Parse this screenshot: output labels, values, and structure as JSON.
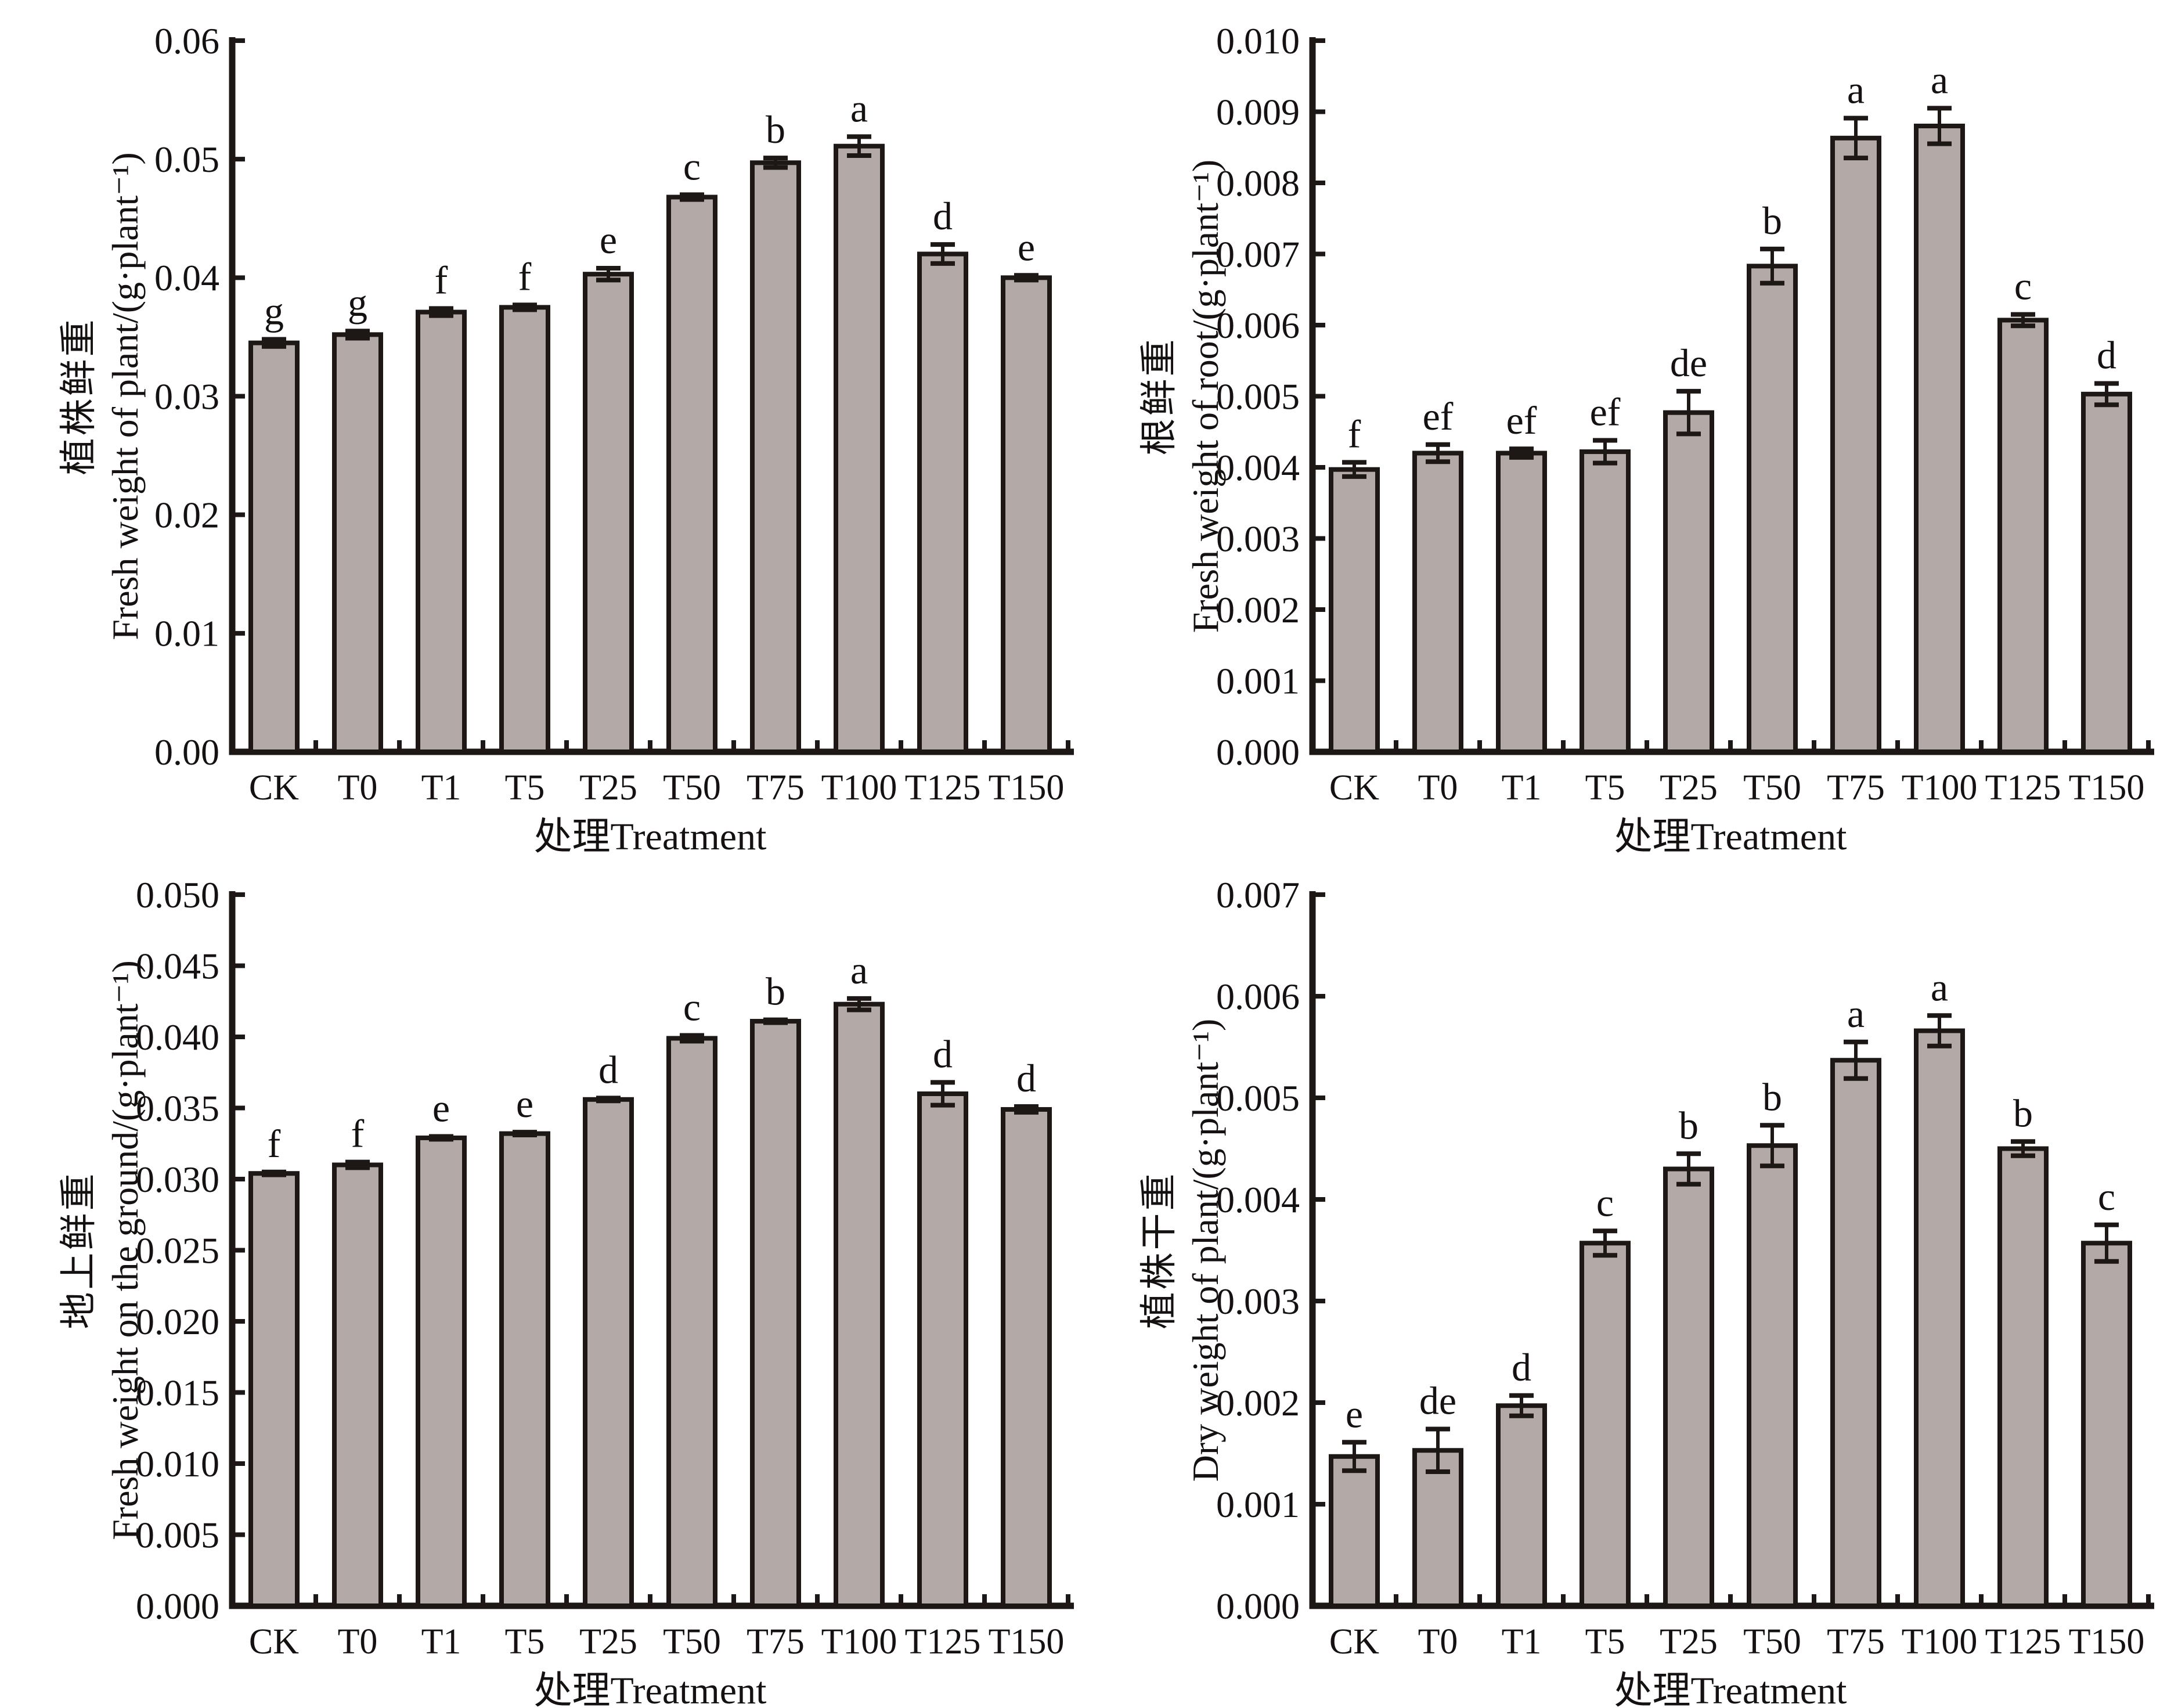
{
  "figure": {
    "description": "Four-panel bar chart figure of plant biomass under treatments",
    "x_axis_label": "处理Treatment",
    "treatments": [
      "CK",
      "T0",
      "T1",
      "T5",
      "T25",
      "T50",
      "T75",
      "T100",
      "T125",
      "T150"
    ]
  },
  "colors": {
    "background": "#ffffff",
    "bar_fill": "#b3a9a6",
    "bar_stroke": "#1d1815",
    "axis": "#1d1815",
    "error_bar": "#1d1815",
    "text": "#151110"
  },
  "chart_data": [
    {
      "type": "bar",
      "panel": "top-left",
      "title": "",
      "ylabel_zh": "植株鲜重",
      "ylabel_en": "Fresh weight of plant/(g·plant⁻¹)",
      "xlabel": "处理Treatment",
      "categories": [
        "CK",
        "T0",
        "T1",
        "T5",
        "T25",
        "T50",
        "T75",
        "T100",
        "T125",
        "T150"
      ],
      "values": [
        0.0345,
        0.0352,
        0.0371,
        0.0375,
        0.0403,
        0.0468,
        0.0497,
        0.0511,
        0.042,
        0.04
      ],
      "errors": [
        0.0003,
        0.0003,
        0.0003,
        0.0002,
        0.0005,
        0.0002,
        0.0004,
        0.0008,
        0.0008,
        0.0002
      ],
      "sig_letters": [
        "g",
        "g",
        "f",
        "f",
        "e",
        "c",
        "b",
        "a",
        "d",
        "e"
      ],
      "ylim": [
        0,
        0.06
      ],
      "ytick_step": 0.01,
      "ytick_decimals": 2,
      "grid": false,
      "legend": null
    },
    {
      "type": "bar",
      "panel": "top-right",
      "title": "",
      "ylabel_zh": "根鲜重",
      "ylabel_en": "Fresh weight of root/(g·plant⁻¹)",
      "xlabel": "处理Treatment",
      "categories": [
        "CK",
        "T0",
        "T1",
        "T5",
        "T25",
        "T50",
        "T75",
        "T100",
        "T125",
        "T150"
      ],
      "values": [
        0.00397,
        0.0042,
        0.0042,
        0.00422,
        0.00477,
        0.00683,
        0.00863,
        0.0088,
        0.00607,
        0.00503
      ],
      "errors": [
        0.0001,
        0.00012,
        6e-05,
        0.00016,
        0.0003,
        0.00024,
        0.00028,
        0.00025,
        8e-05,
        0.00015
      ],
      "sig_letters": [
        "f",
        "ef",
        "ef",
        "ef",
        "de",
        "b",
        "a",
        "a",
        "c",
        "d"
      ],
      "ylim": [
        0,
        0.01
      ],
      "ytick_step": 0.001,
      "ytick_decimals": 3,
      "grid": false,
      "legend": null
    },
    {
      "type": "bar",
      "panel": "bottom-left",
      "title": "",
      "ylabel_zh": "地上鲜重",
      "ylabel_en": "Fresh weight on the ground/(g·plant⁻¹)",
      "xlabel": "处理Treatment",
      "categories": [
        "CK",
        "T0",
        "T1",
        "T5",
        "T25",
        "T50",
        "T75",
        "T100",
        "T125",
        "T150"
      ],
      "values": [
        0.0304,
        0.031,
        0.0329,
        0.0332,
        0.0356,
        0.0399,
        0.0411,
        0.0423,
        0.036,
        0.0349
      ],
      "errors": [
        0.0001,
        0.0002,
        0.0001,
        0.0001,
        0.0001,
        0.0002,
        0.0001,
        0.0004,
        0.0008,
        0.0002
      ],
      "sig_letters": [
        "f",
        "f",
        "e",
        "e",
        "d",
        "c",
        "b",
        "a",
        "d",
        "d"
      ],
      "ylim": [
        0,
        0.05
      ],
      "ytick_step": 0.005,
      "ytick_decimals": 3,
      "grid": false,
      "legend": null
    },
    {
      "type": "bar",
      "panel": "bottom-right",
      "title": "",
      "ylabel_zh": "植株干重",
      "ylabel_en": "Dry weight of plant/(g·plant⁻¹)",
      "xlabel": "处理Treatment",
      "categories": [
        "CK",
        "T0",
        "T1",
        "T5",
        "T25",
        "T50",
        "T75",
        "T100",
        "T125",
        "T150"
      ],
      "values": [
        0.00147,
        0.00153,
        0.00197,
        0.00357,
        0.0043,
        0.00453,
        0.00537,
        0.00566,
        0.0045,
        0.00357
      ],
      "errors": [
        0.00014,
        0.00021,
        0.0001,
        0.00012,
        0.00015,
        0.0002,
        0.00018,
        0.00015,
        7e-05,
        0.00018
      ],
      "sig_letters": [
        "e",
        "de",
        "d",
        "c",
        "b",
        "b",
        "a",
        "a",
        "b",
        "c"
      ],
      "ylim": [
        0,
        0.007
      ],
      "ytick_step": 0.001,
      "ytick_decimals": 3,
      "grid": false,
      "legend": null
    }
  ]
}
